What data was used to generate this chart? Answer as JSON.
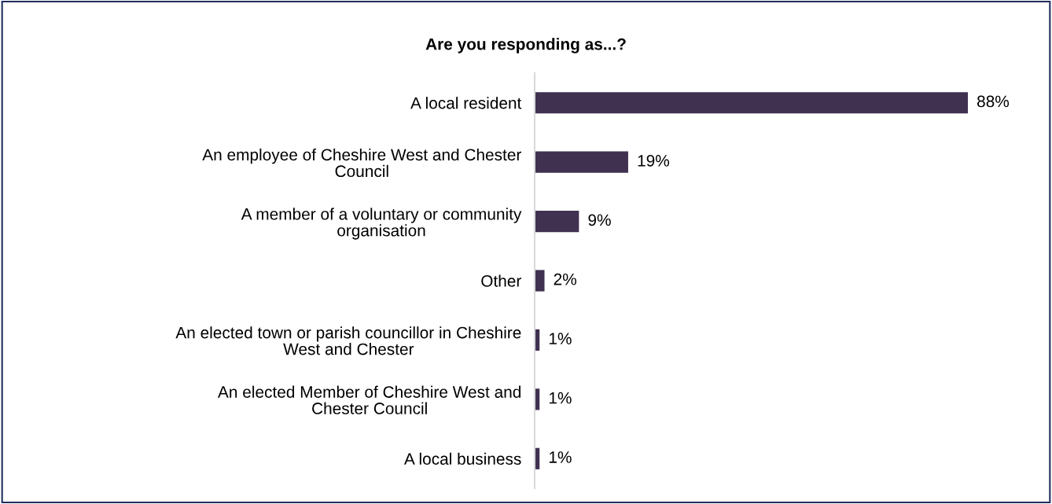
{
  "chart_data": {
    "type": "bar",
    "orientation": "horizontal",
    "title": "Are you responding as...?",
    "categories": [
      "A local resident",
      "An employee of Cheshire West and Chester\nCouncil",
      "A member of a voluntary or community\norganisation",
      "Other",
      "An elected town or parish councillor in Cheshire\nWest and Chester",
      "An elected Member of Cheshire West and\nChester Council",
      "A local business"
    ],
    "values": [
      88,
      19,
      9,
      2,
      1,
      1,
      1
    ],
    "value_labels": [
      "88%",
      "19%",
      "9%",
      "2%",
      "1%",
      "1%",
      "1%"
    ],
    "color": "#403151",
    "grid": false,
    "legend": false
  }
}
